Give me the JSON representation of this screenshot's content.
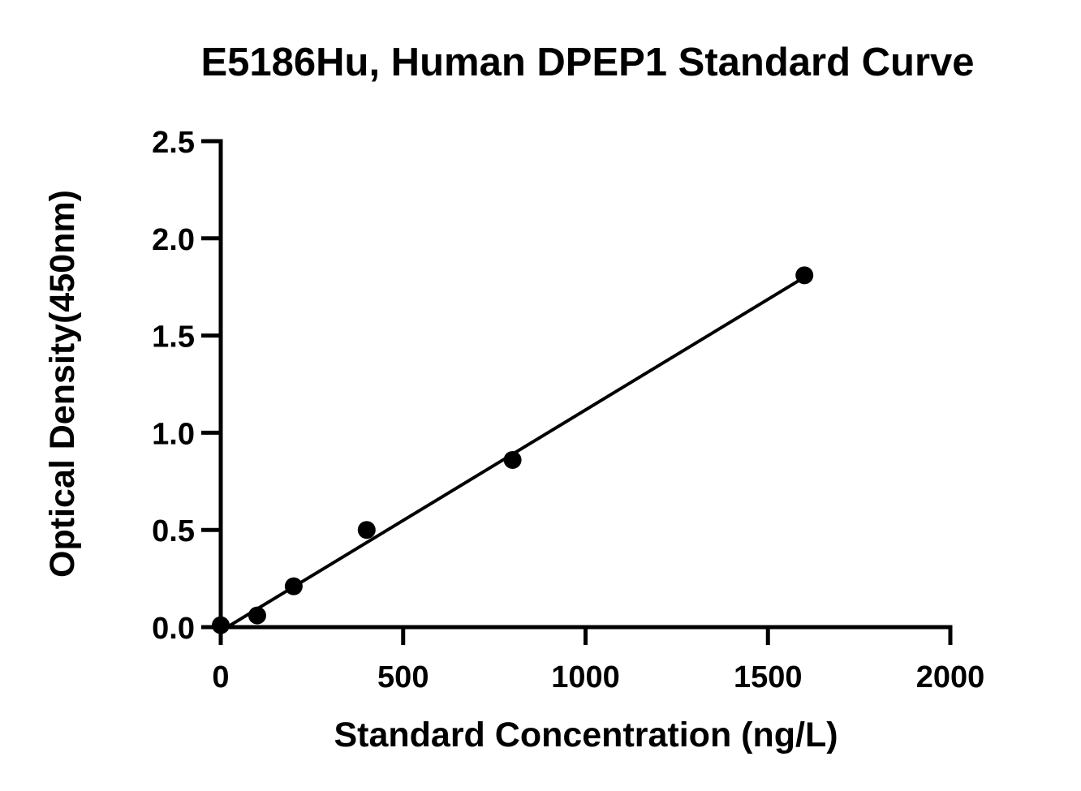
{
  "chart_data": {
    "type": "scatter",
    "title": "E5186Hu, Human DPEP1 Standard Curve",
    "xlabel": "Standard Concentration (ng/L)",
    "ylabel": "Optical Density(450nm)",
    "xlim": [
      0,
      2000
    ],
    "ylim": [
      0,
      2.5
    ],
    "x_ticks": [
      0,
      500,
      1000,
      1500,
      2000
    ],
    "x_tick_labels": [
      "0",
      "500",
      "1000",
      "1500",
      "2000"
    ],
    "y_ticks": [
      0,
      0.5,
      1.0,
      1.5,
      2.0,
      2.5
    ],
    "y_tick_labels": [
      "0.0",
      "0.5",
      "1.0",
      "1.5",
      "2.0",
      "2.5"
    ],
    "grid": false,
    "series": [
      {
        "x": [
          0,
          100,
          200,
          400,
          800,
          1600
        ],
        "y": [
          0.01,
          0.06,
          0.21,
          0.5,
          0.86,
          1.81
        ]
      }
    ],
    "fit_line": {
      "x": [
        0,
        1600
      ],
      "y": [
        -0.02,
        1.8
      ]
    },
    "colors": {
      "marker": "#000000",
      "line": "#000000",
      "axis": "#000000"
    }
  }
}
